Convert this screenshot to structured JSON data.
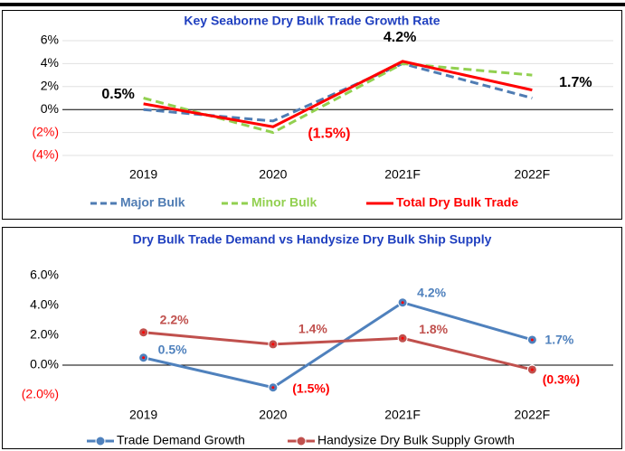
{
  "chart_data": [
    {
      "type": "line",
      "title": "Key Seaborne Dry Bulk Trade Growth Rate",
      "categories": [
        "2019",
        "2020",
        "2021F",
        "2022F"
      ],
      "ylim": [
        -4,
        6
      ],
      "yticks": [
        {
          "value": 6,
          "label": "6%"
        },
        {
          "value": 4,
          "label": "4%"
        },
        {
          "value": 2,
          "label": "2%"
        },
        {
          "value": 0,
          "label": "0%"
        },
        {
          "value": -2,
          "label": "(2%)"
        },
        {
          "value": -4,
          "label": "(4%)"
        }
      ],
      "grid": true,
      "legend": "bottom",
      "series": [
        {
          "name": "Major Bulk",
          "color": "#4f7cb3",
          "dash": true,
          "values": [
            0,
            -1,
            4,
            1
          ]
        },
        {
          "name": "Minor Bulk",
          "color": "#92d050",
          "dash": true,
          "values": [
            1,
            -2,
            4,
            3
          ]
        },
        {
          "name": "Total Dry Bulk Trade",
          "color": "#ff0000",
          "values": [
            0.5,
            -1.5,
            4.2,
            1.7
          ],
          "value_labels": [
            "0.5%",
            "(1.5%)",
            "4.2%",
            "1.7%"
          ]
        }
      ]
    },
    {
      "type": "line",
      "title": "Dry Bulk Trade Demand vs Handysize Dry Bulk Ship Supply",
      "categories": [
        "2019",
        "2020",
        "2021F",
        "2022F"
      ],
      "ylim": [
        -2,
        6
      ],
      "yticks": [
        {
          "value": 6,
          "label": "6.0%"
        },
        {
          "value": 4,
          "label": "4.0%"
        },
        {
          "value": 2,
          "label": "2.0%"
        },
        {
          "value": 0,
          "label": "0.0%"
        },
        {
          "value": -2,
          "label": "(2.0%)"
        }
      ],
      "grid": false,
      "legend": "bottom",
      "markers": true,
      "series": [
        {
          "name": "Trade Demand Growth",
          "color": "#4f81bd",
          "values": [
            0.5,
            -1.5,
            4.2,
            1.7
          ],
          "value_labels": [
            "0.5%",
            "(1.5%)",
            "4.2%",
            "1.7%"
          ]
        },
        {
          "name": "Handysize Dry Bulk Supply Growth",
          "color": "#c0504d",
          "values": [
            2.2,
            1.4,
            1.8,
            -0.3
          ],
          "value_labels": [
            "2.2%",
            "1.4%",
            "1.8%",
            "(0.3%)"
          ]
        }
      ]
    }
  ]
}
